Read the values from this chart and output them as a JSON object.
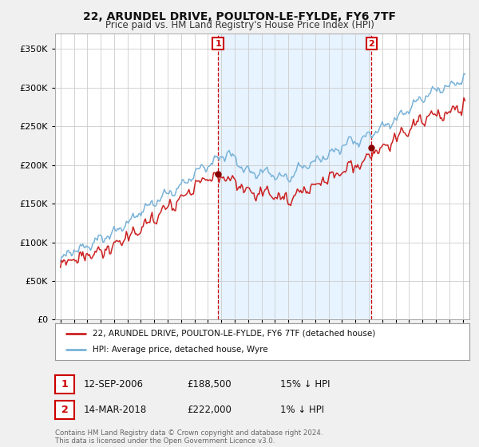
{
  "title": "22, ARUNDEL DRIVE, POULTON-LE-FYLDE, FY6 7TF",
  "subtitle": "Price paid vs. HM Land Registry's House Price Index (HPI)",
  "legend_entry1": "22, ARUNDEL DRIVE, POULTON-LE-FYLDE, FY6 7TF (detached house)",
  "legend_entry2": "HPI: Average price, detached house, Wyre",
  "annotation1_label": "1",
  "annotation1_date": "12-SEP-2006",
  "annotation1_price": "£188,500",
  "annotation1_hpi": "15% ↓ HPI",
  "annotation1_year": 2006.75,
  "annotation2_label": "2",
  "annotation2_date": "14-MAR-2018",
  "annotation2_price": "£222,000",
  "annotation2_hpi": "1% ↓ HPI",
  "annotation2_year": 2018.2,
  "sale1_value": 188500,
  "sale2_value": 222000,
  "footer": "Contains HM Land Registry data © Crown copyright and database right 2024.\nThis data is licensed under the Open Government Licence v3.0.",
  "hpi_color": "#7ab3d8",
  "price_color": "#cc2222",
  "vline_color": "#cc0000",
  "annotation_box_color": "#cc0000",
  "shade_color": "#ddeeff",
  "ylim": [
    0,
    370000
  ],
  "yticks": [
    0,
    50000,
    100000,
    150000,
    200000,
    250000,
    300000,
    350000
  ],
  "bg_color": "#f0f0f0",
  "plot_bg": "#ffffff"
}
